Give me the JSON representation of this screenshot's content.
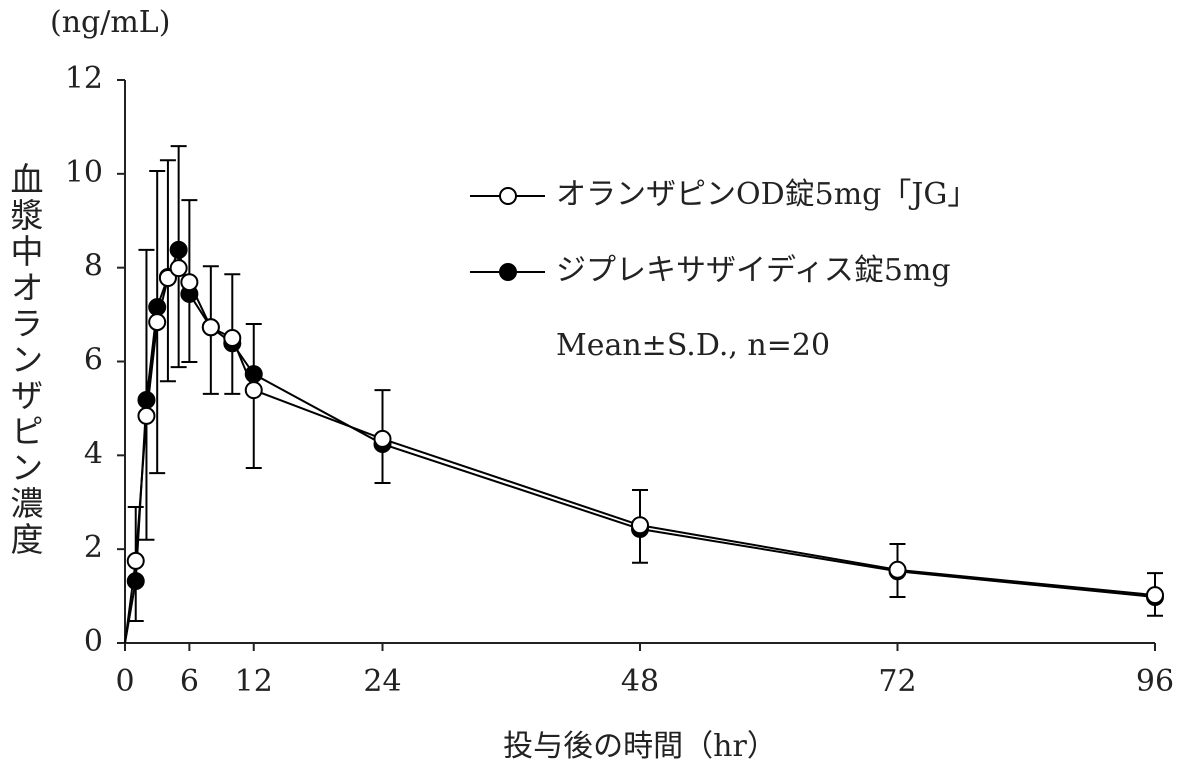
{
  "chart_data": {
    "type": "line",
    "y_unit": "(ng/mL)",
    "y_label": "血漿中オランザピン濃度",
    "x_label": "投与後の時間（hr）",
    "annotation": "Mean±S.D., n=20",
    "x": [
      0,
      1,
      2,
      3,
      4,
      5,
      6,
      8,
      10,
      12,
      24,
      48,
      72,
      96
    ],
    "series": [
      {
        "name": "オランザピンOD錠5mg「JG」",
        "color": "#000000",
        "marker": "open",
        "error_direction": "up",
        "values": [
          0,
          1.75,
          4.84,
          6.84,
          7.78,
          7.99,
          7.69,
          6.73,
          6.5,
          5.39,
          4.35,
          2.51,
          1.56,
          1.02
        ],
        "errors": [
          null,
          1.15,
          3.54,
          3.22,
          2.51,
          2.6,
          1.75,
          1.3,
          1.36,
          1.41,
          1.04,
          0.75,
          0.55,
          0.47
        ]
      },
      {
        "name": "ジプレキサザイディス錠5mg",
        "color": "#000000",
        "marker": "filled",
        "error_direction": "down",
        "values": [
          0,
          1.32,
          5.18,
          7.16,
          7.8,
          8.38,
          7.44,
          6.73,
          6.39,
          5.73,
          4.24,
          2.43,
          1.53,
          0.98
        ],
        "errors": [
          null,
          0.85,
          2.98,
          3.54,
          2.22,
          2.5,
          1.45,
          1.42,
          1.08,
          2.0,
          0.83,
          0.72,
          0.55,
          0.4
        ]
      }
    ],
    "xlim": [
      0,
      96
    ],
    "xticks": [
      0,
      6,
      12,
      24,
      48,
      72,
      96
    ],
    "ylim": [
      0,
      12
    ],
    "yticks": [
      0,
      2,
      4,
      6,
      8,
      10,
      12
    ],
    "grid": false
  }
}
